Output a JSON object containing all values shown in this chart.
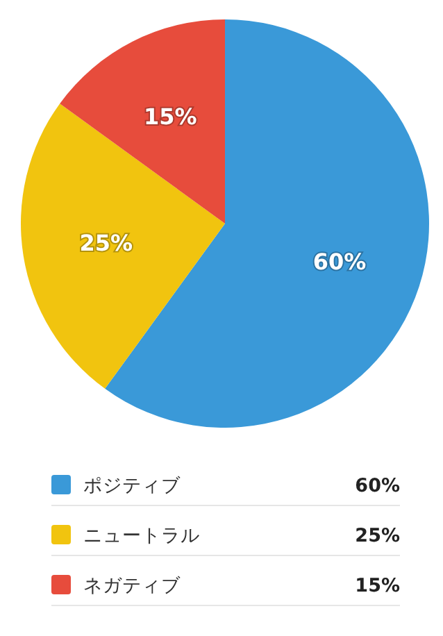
{
  "chart_data": {
    "type": "pie",
    "categories": [
      "ポジティブ",
      "ニュートラル",
      "ネガティブ"
    ],
    "values": [
      60,
      25,
      15
    ],
    "colors": [
      "#3a99d8",
      "#f1c40f",
      "#e74c3c"
    ],
    "value_labels": [
      "60%",
      "25%",
      "15%"
    ],
    "legend": "bottom"
  }
}
